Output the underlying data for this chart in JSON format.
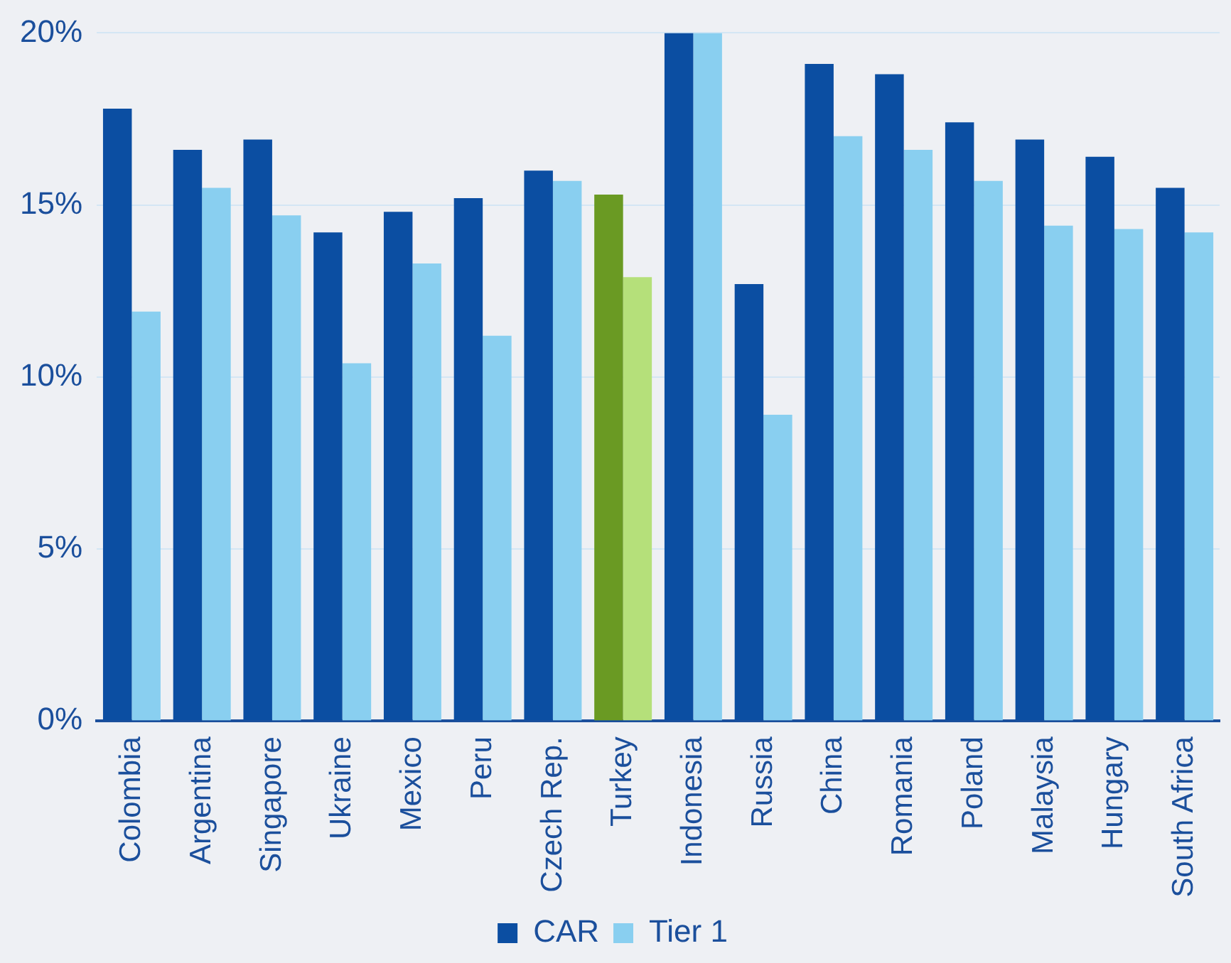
{
  "chart_data": {
    "type": "bar",
    "categories": [
      "Colombia",
      "Argentina",
      "Singapore",
      "Ukraine",
      "Mexico",
      "Peru",
      "Czech Rep.",
      "Turkey",
      "Indonesia",
      "Russia",
      "China",
      "Romania",
      "Poland",
      "Malaysia",
      "Hungary",
      "South Africa"
    ],
    "series": [
      {
        "name": "CAR",
        "color": "#0b4ea2",
        "colors": [
          "#0b4ea2",
          "#0b4ea2",
          "#0b4ea2",
          "#0b4ea2",
          "#0b4ea2",
          "#0b4ea2",
          "#0b4ea2",
          "#6a9a23",
          "#0b4ea2",
          "#0b4ea2",
          "#0b4ea2",
          "#0b4ea2",
          "#0b4ea2",
          "#0b4ea2",
          "#0b4ea2",
          "#0b4ea2"
        ],
        "values": [
          17.8,
          16.6,
          16.9,
          14.2,
          14.8,
          15.2,
          16.0,
          15.3,
          20.0,
          12.7,
          19.1,
          18.8,
          17.4,
          16.9,
          16.4,
          15.5
        ]
      },
      {
        "name": "Tier 1",
        "color": "#89cff0",
        "colors": [
          "#89cff0",
          "#89cff0",
          "#89cff0",
          "#89cff0",
          "#89cff0",
          "#89cff0",
          "#89cff0",
          "#b5e07a",
          "#89cff0",
          "#89cff0",
          "#89cff0",
          "#89cff0",
          "#89cff0",
          "#89cff0",
          "#89cff0",
          "#89cff0"
        ],
        "values": [
          11.9,
          15.5,
          14.7,
          10.4,
          13.3,
          11.2,
          15.7,
          12.9,
          20.0,
          8.9,
          17.0,
          16.6,
          15.7,
          14.4,
          14.3,
          14.2
        ]
      }
    ],
    "ylim": [
      0,
      20
    ],
    "yticks": [
      {
        "value": 0,
        "label": "0%"
      },
      {
        "value": 5,
        "label": "5%"
      },
      {
        "value": 10,
        "label": "10%"
      },
      {
        "value": 15,
        "label": "15%"
      },
      {
        "value": 20,
        "label": "20%"
      }
    ],
    "grid": "y",
    "legend": "bottom"
  }
}
